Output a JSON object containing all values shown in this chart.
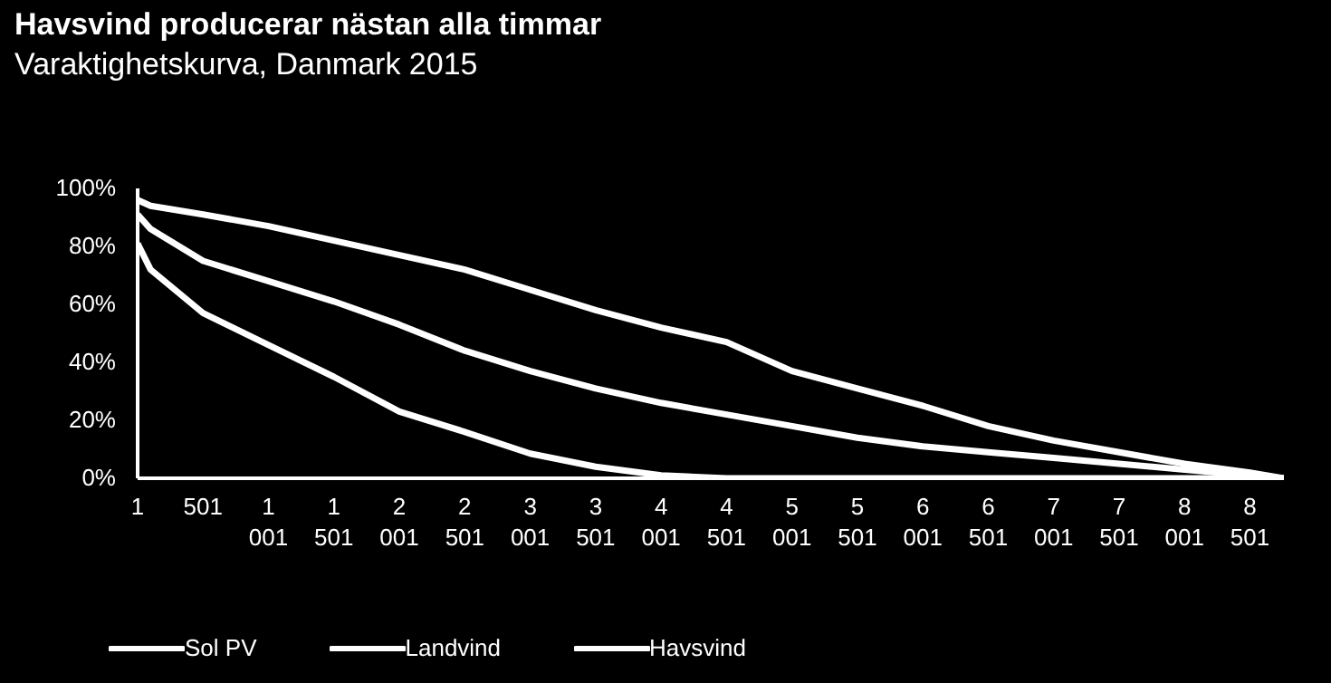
{
  "chart_data": {
    "type": "line",
    "title": "Havsvind producerar nästan alla timmar",
    "subtitle": "Varaktighetskurva, Danmark 2015",
    "x": [
      1,
      100,
      501,
      1001,
      1501,
      2001,
      2501,
      3001,
      3501,
      4001,
      4501,
      5001,
      5501,
      6001,
      6501,
      7001,
      7501,
      8001,
      8501,
      8760
    ],
    "series": [
      {
        "name": "Sol PV",
        "color": "#ffffff",
        "values": [
          81,
          72,
          57,
          46,
          35,
          23,
          16,
          8.5,
          4,
          1,
          0,
          0,
          0,
          0,
          0,
          0,
          0,
          0,
          0,
          0
        ]
      },
      {
        "name": "Landvind",
        "color": "#ffffff",
        "values": [
          91,
          86,
          75,
          68,
          61,
          53,
          44,
          37,
          31,
          26,
          22,
          18,
          14,
          11,
          9,
          7,
          5,
          3,
          1,
          0
        ]
      },
      {
        "name": "Havsvind",
        "color": "#ffffff",
        "values": [
          96,
          94,
          91,
          87,
          82,
          77,
          72,
          65,
          58,
          52,
          47,
          37,
          31,
          25,
          18,
          13,
          9,
          5,
          2,
          0
        ]
      }
    ],
    "xlim": [
      1,
      8760
    ],
    "xticks": [
      {
        "value": 1,
        "label": "1"
      },
      {
        "value": 501,
        "label": "501"
      },
      {
        "value": 1001,
        "label": "1 001"
      },
      {
        "value": 1501,
        "label": "1 501"
      },
      {
        "value": 2001,
        "label": "2 001"
      },
      {
        "value": 2501,
        "label": "2 501"
      },
      {
        "value": 3001,
        "label": "3 001"
      },
      {
        "value": 3501,
        "label": "3 501"
      },
      {
        "value": 4001,
        "label": "4 001"
      },
      {
        "value": 4501,
        "label": "4 501"
      },
      {
        "value": 5001,
        "label": "5 001"
      },
      {
        "value": 5501,
        "label": "5 501"
      },
      {
        "value": 6001,
        "label": "6 001"
      },
      {
        "value": 6501,
        "label": "6 501"
      },
      {
        "value": 7001,
        "label": "7 001"
      },
      {
        "value": 7501,
        "label": "7 501"
      },
      {
        "value": 8001,
        "label": "8 001"
      },
      {
        "value": 8501,
        "label": "8 501"
      }
    ],
    "ylim": [
      0,
      100
    ],
    "yticks": [
      {
        "value": 0,
        "label": "0%"
      },
      {
        "value": 20,
        "label": "20%"
      },
      {
        "value": 40,
        "label": "40%"
      },
      {
        "value": 60,
        "label": "60%"
      },
      {
        "value": 80,
        "label": "80%"
      },
      {
        "value": 100,
        "label": "100%"
      }
    ],
    "grid": false,
    "legend": "bottom",
    "marker": "none",
    "line_style": "solid"
  }
}
